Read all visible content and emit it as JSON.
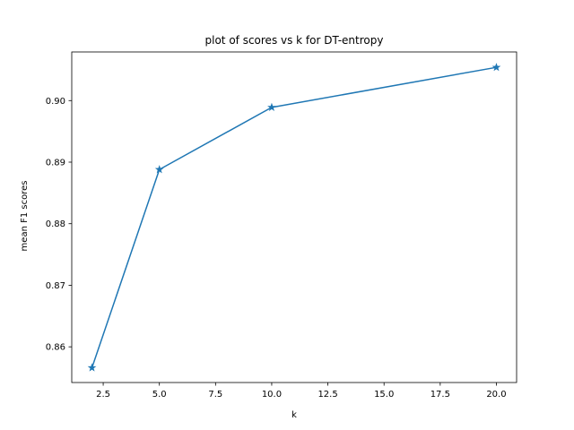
{
  "chart_data": {
    "type": "line",
    "title": "plot of scores vs k for DT-entropy",
    "xlabel": "k",
    "ylabel": "mean F1 scores",
    "x": [
      2,
      5,
      10,
      20
    ],
    "series": [
      {
        "values": [
          0.8566,
          0.8888,
          0.8989,
          0.9054
        ],
        "color": "#1f77b4",
        "marker": "star"
      }
    ],
    "xlim": [
      1.1,
      20.9
    ],
    "ylim": [
      0.8542,
      0.9079
    ],
    "xticks": [
      2.5,
      5.0,
      7.5,
      10.0,
      12.5,
      15.0,
      17.5,
      20.0
    ],
    "xtick_labels": [
      "2.5",
      "5.0",
      "7.5",
      "10.0",
      "12.5",
      "15.0",
      "17.5",
      "20.0"
    ],
    "yticks": [
      0.86,
      0.87,
      0.88,
      0.89,
      0.9
    ],
    "ytick_labels": [
      "0.86",
      "0.87",
      "0.88",
      "0.89",
      "0.90"
    ],
    "grid": false,
    "legend": "none"
  }
}
